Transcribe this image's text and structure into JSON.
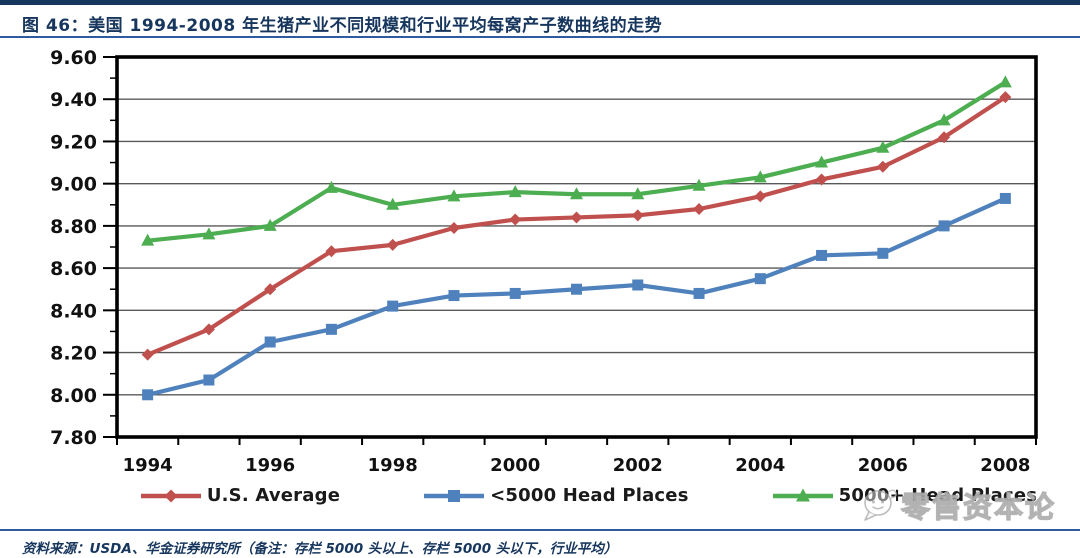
{
  "header": {
    "title": "图 46：美国 1994-2008 年生猪产业不同规模和行业平均每窝产子数曲线的走势"
  },
  "chart_data": {
    "type": "line",
    "x": [
      1994,
      1995,
      1996,
      1997,
      1998,
      1999,
      2000,
      2001,
      2002,
      2003,
      2004,
      2005,
      2006,
      2007,
      2008
    ],
    "x_tick_labels": [
      "1994",
      "1996",
      "1998",
      "2000",
      "2002",
      "2004",
      "2006",
      "2008"
    ],
    "series": [
      {
        "name": "U.S. Average",
        "marker": "diamond",
        "color": "#C0504D",
        "values": [
          8.19,
          8.31,
          8.5,
          8.68,
          8.71,
          8.79,
          8.83,
          8.84,
          8.85,
          8.88,
          8.94,
          9.02,
          9.08,
          9.22,
          9.41
        ]
      },
      {
        "name": "<5000 Head Places",
        "marker": "square",
        "color": "#4F81BD",
        "values": [
          8.0,
          8.07,
          8.25,
          8.31,
          8.42,
          8.47,
          8.48,
          8.5,
          8.52,
          8.48,
          8.55,
          8.66,
          8.67,
          8.8,
          8.93
        ]
      },
      {
        "name": "5000+ Head Places",
        "marker": "triangle",
        "color": "#4CAE50",
        "values": [
          8.73,
          8.76,
          8.8,
          8.98,
          8.9,
          8.94,
          8.96,
          8.95,
          8.95,
          8.99,
          9.03,
          9.1,
          9.17,
          9.3,
          9.48
        ]
      }
    ],
    "ylim": [
      7.8,
      9.6
    ],
    "y_tick_step": 0.2,
    "y_minor_tick_step": 0.1,
    "y_tick_labels": [
      "7.80",
      "8.00",
      "8.20",
      "8.40",
      "8.60",
      "8.80",
      "9.00",
      "9.20",
      "9.40",
      "9.60"
    ],
    "grid": "horizontal-major",
    "legend_position": "bottom",
    "title": "",
    "xlabel": "",
    "ylabel": ""
  },
  "colors": {
    "accent_navy": "#17365D",
    "rule_blue": "#2E5B9F",
    "gridline": "#595959",
    "plot_border": "#000000",
    "axis_text": "#111111"
  },
  "watermark": {
    "label": "零售资本论",
    "icon": "chat-bubble-icon"
  },
  "footer": {
    "source": "资料来源：USDA、华金证券研究所（备注：存栏 5000 头以上、存栏 5000 头以下，行业平均）"
  }
}
